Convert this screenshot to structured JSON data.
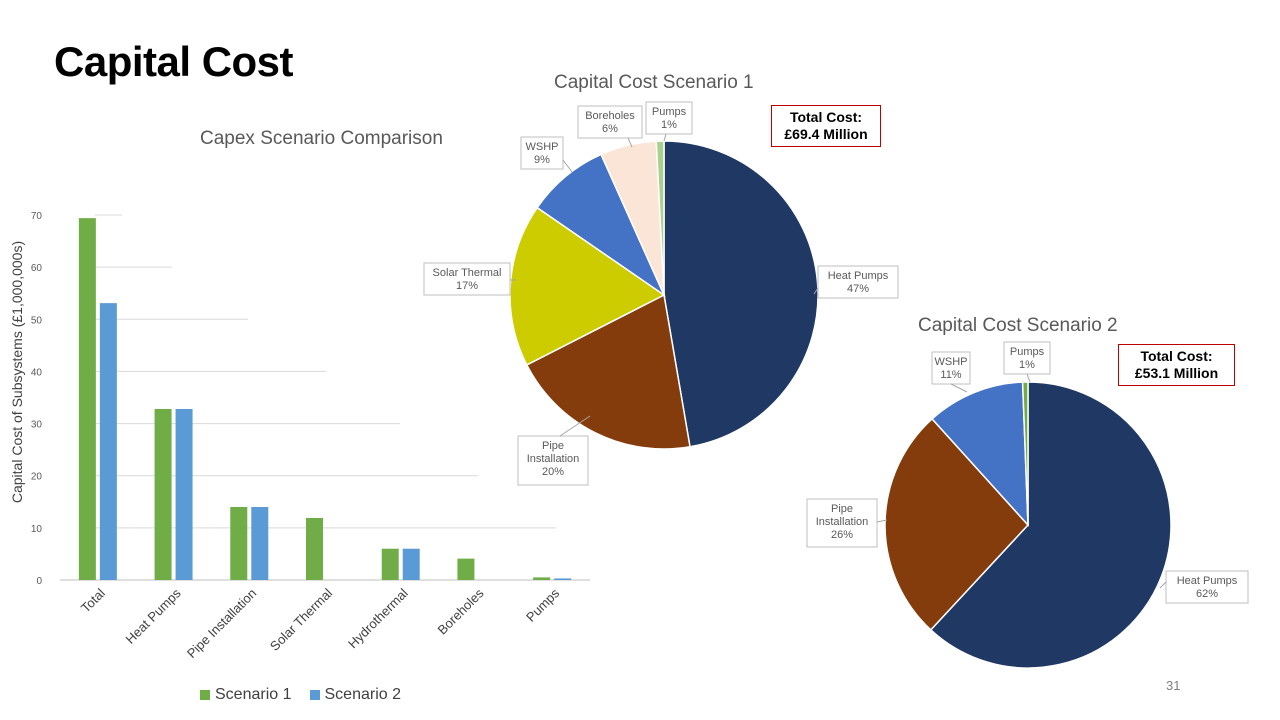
{
  "slide": {
    "title": "Capital Cost",
    "page_number": "31"
  },
  "colors": {
    "scenario1": "#70AD47",
    "scenario2": "#5B9BD5"
  },
  "chart_data": [
    {
      "type": "bar",
      "title": "Capex Scenario Comparison",
      "xlabel": "",
      "ylabel": "Capital Cost of Subsystems (£1,000,000s)",
      "ylim": [
        0,
        70
      ],
      "yticks": [
        0,
        10,
        20,
        30,
        40,
        50,
        60,
        70
      ],
      "grid": true,
      "legend": "bottom",
      "categories": [
        "Total",
        "Heat Pumps",
        "Pipe Installation",
        "Solar Thermal",
        "Hydrothermal",
        "Boreholes",
        "Pumps"
      ],
      "series": [
        {
          "name": "Scenario 1",
          "color": "#70AD47",
          "values": [
            69.4,
            32.8,
            14.0,
            11.9,
            6.0,
            4.1,
            0.5
          ]
        },
        {
          "name": "Scenario 2",
          "color": "#5B9BD5",
          "values": [
            53.1,
            32.8,
            14.0,
            0,
            6.0,
            0,
            0.3
          ]
        }
      ]
    },
    {
      "type": "pie",
      "title": "Capital Cost Scenario 1",
      "total_label": "Total Cost:",
      "total_value": "£69.4 Million",
      "slices": [
        {
          "label": "Heat Pumps",
          "pct_label": "47%",
          "value": 47.3,
          "color": "#1F3864"
        },
        {
          "label": "Pipe Installation",
          "pct_label": "20%",
          "value": 20.2,
          "color": "#843C0C"
        },
        {
          "label": "Solar Thermal",
          "pct_label": "17%",
          "value": 17.1,
          "color": "#CCCC00"
        },
        {
          "label": "WSHP",
          "pct_label": "9%",
          "value": 8.7,
          "color": "#4472C4"
        },
        {
          "label": "Boreholes",
          "pct_label": "6%",
          "value": 5.9,
          "color": "#FBE5D6"
        },
        {
          "label": "Pumps",
          "pct_label": "1%",
          "value": 0.8,
          "color": "#A9D18E"
        }
      ]
    },
    {
      "type": "pie",
      "title": "Capital Cost Scenario 2",
      "total_label": "Total Cost:",
      "total_value": "£53.1 Million",
      "slices": [
        {
          "label": "Heat Pumps",
          "pct_label": "62%",
          "value": 61.9,
          "color": "#1F3864"
        },
        {
          "label": "Pipe Installation",
          "pct_label": "26%",
          "value": 26.4,
          "color": "#843C0C"
        },
        {
          "label": "WSHP",
          "pct_label": "11%",
          "value": 11.1,
          "color": "#4472C4"
        },
        {
          "label": "Pumps",
          "pct_label": "1%",
          "value": 0.6,
          "color": "#70AD47"
        }
      ]
    }
  ]
}
